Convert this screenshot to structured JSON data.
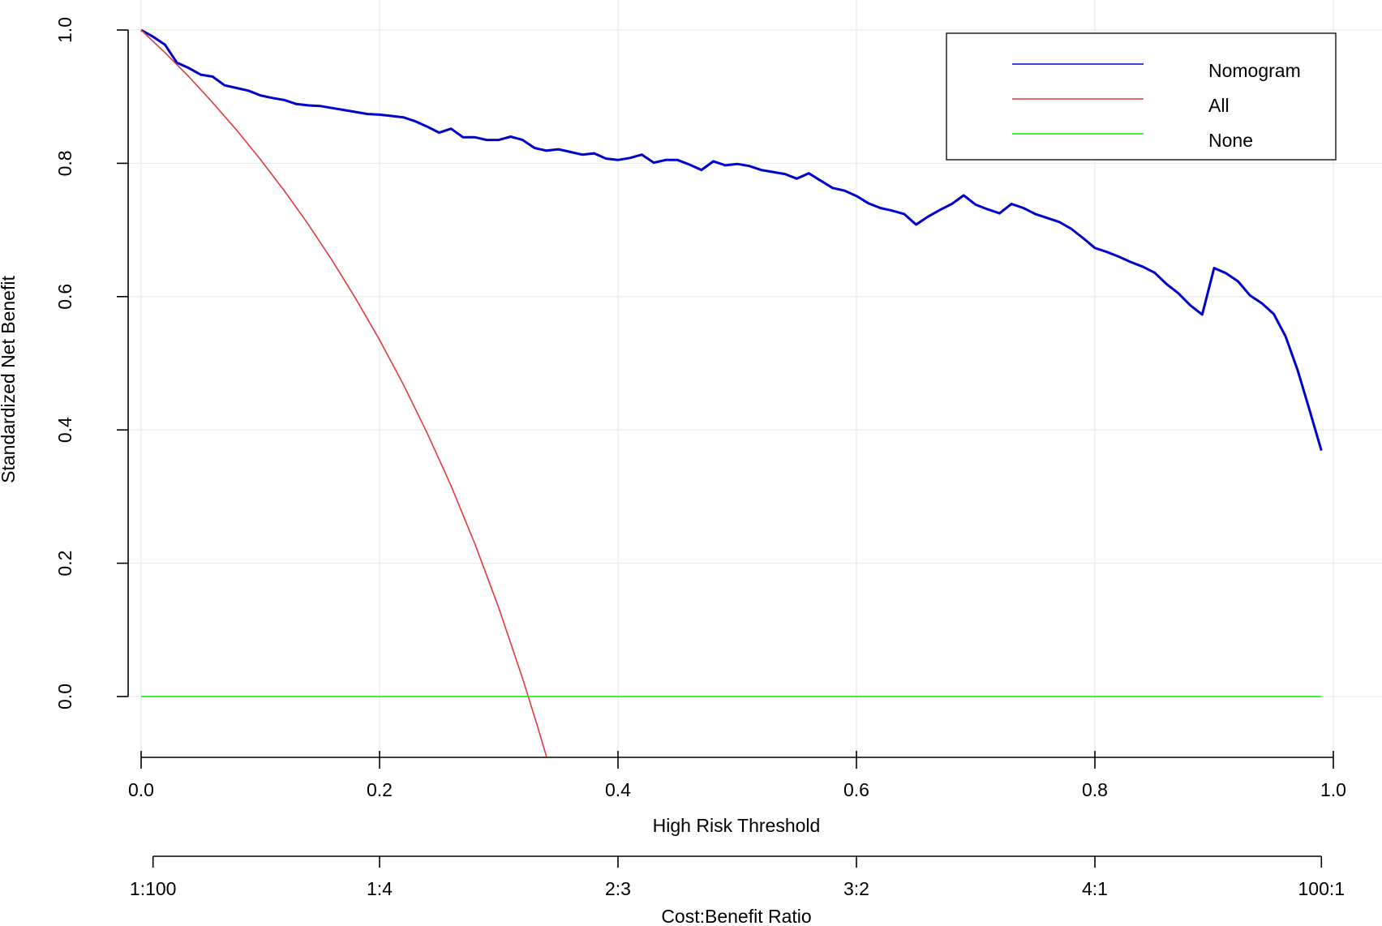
{
  "chart_data": {
    "type": "line",
    "title": "",
    "ylabel": "Standardized Net Benefit",
    "xlabel": "High Risk Threshold",
    "x2label": "Cost:Benefit Ratio",
    "xlim": [
      0,
      1
    ],
    "ylim": [
      -0.09,
      1.0
    ],
    "grid": true,
    "legend_position": "top-right",
    "y_ticks": [
      "0.0",
      "0.2",
      "0.4",
      "0.6",
      "0.8",
      "1.0"
    ],
    "x_ticks": [
      "0.0",
      "0.2",
      "0.4",
      "0.6",
      "0.8",
      "1.0"
    ],
    "x2_ticks": [
      {
        "x": 0.01,
        "label": "1:100"
      },
      {
        "x": 0.2,
        "label": "1:4"
      },
      {
        "x": 0.4,
        "label": "2:3"
      },
      {
        "x": 0.6,
        "label": "3:2"
      },
      {
        "x": 0.8,
        "label": "4:1"
      },
      {
        "x": 0.99,
        "label": "100:1"
      }
    ],
    "series": [
      {
        "name": "Nomogram",
        "color": "#0000cd",
        "points": [
          [
            0.0,
            1.0
          ],
          [
            0.01,
            0.99
          ],
          [
            0.02,
            0.978
          ],
          [
            0.03,
            0.951
          ],
          [
            0.04,
            0.943
          ],
          [
            0.05,
            0.933
          ],
          [
            0.06,
            0.93
          ],
          [
            0.07,
            0.917
          ],
          [
            0.08,
            0.913
          ],
          [
            0.09,
            0.909
          ],
          [
            0.1,
            0.902
          ],
          [
            0.11,
            0.898
          ],
          [
            0.12,
            0.895
          ],
          [
            0.13,
            0.889
          ],
          [
            0.14,
            0.887
          ],
          [
            0.15,
            0.886
          ],
          [
            0.16,
            0.883
          ],
          [
            0.17,
            0.88
          ],
          [
            0.18,
            0.877
          ],
          [
            0.19,
            0.874
          ],
          [
            0.2,
            0.873
          ],
          [
            0.21,
            0.871
          ],
          [
            0.22,
            0.869
          ],
          [
            0.23,
            0.863
          ],
          [
            0.24,
            0.855
          ],
          [
            0.25,
            0.846
          ],
          [
            0.26,
            0.852
          ],
          [
            0.27,
            0.839
          ],
          [
            0.28,
            0.839
          ],
          [
            0.29,
            0.835
          ],
          [
            0.3,
            0.835
          ],
          [
            0.31,
            0.84
          ],
          [
            0.32,
            0.835
          ],
          [
            0.33,
            0.823
          ],
          [
            0.34,
            0.819
          ],
          [
            0.35,
            0.821
          ],
          [
            0.36,
            0.817
          ],
          [
            0.37,
            0.813
          ],
          [
            0.38,
            0.815
          ],
          [
            0.39,
            0.807
          ],
          [
            0.4,
            0.805
          ],
          [
            0.41,
            0.808
          ],
          [
            0.42,
            0.813
          ],
          [
            0.43,
            0.801
          ],
          [
            0.44,
            0.805
          ],
          [
            0.45,
            0.805
          ],
          [
            0.46,
            0.798
          ],
          [
            0.47,
            0.79
          ],
          [
            0.48,
            0.803
          ],
          [
            0.49,
            0.797
          ],
          [
            0.5,
            0.799
          ],
          [
            0.51,
            0.796
          ],
          [
            0.52,
            0.79
          ],
          [
            0.53,
            0.787
          ],
          [
            0.54,
            0.784
          ],
          [
            0.55,
            0.777
          ],
          [
            0.56,
            0.785
          ],
          [
            0.57,
            0.774
          ],
          [
            0.58,
            0.763
          ],
          [
            0.59,
            0.759
          ],
          [
            0.6,
            0.751
          ],
          [
            0.61,
            0.74
          ],
          [
            0.62,
            0.733
          ],
          [
            0.63,
            0.729
          ],
          [
            0.64,
            0.724
          ],
          [
            0.65,
            0.708
          ],
          [
            0.66,
            0.72
          ],
          [
            0.67,
            0.73
          ],
          [
            0.68,
            0.739
          ],
          [
            0.69,
            0.752
          ],
          [
            0.7,
            0.738
          ],
          [
            0.71,
            0.731
          ],
          [
            0.72,
            0.725
          ],
          [
            0.73,
            0.739
          ],
          [
            0.74,
            0.733
          ],
          [
            0.75,
            0.724
          ],
          [
            0.76,
            0.718
          ],
          [
            0.77,
            0.712
          ],
          [
            0.78,
            0.702
          ],
          [
            0.79,
            0.688
          ],
          [
            0.8,
            0.673
          ],
          [
            0.81,
            0.667
          ],
          [
            0.82,
            0.66
          ],
          [
            0.83,
            0.652
          ],
          [
            0.84,
            0.645
          ],
          [
            0.85,
            0.636
          ],
          [
            0.86,
            0.619
          ],
          [
            0.87,
            0.605
          ],
          [
            0.88,
            0.587
          ],
          [
            0.89,
            0.573
          ],
          [
            0.9,
            0.643
          ],
          [
            0.91,
            0.635
          ],
          [
            0.92,
            0.623
          ],
          [
            0.93,
            0.602
          ],
          [
            0.94,
            0.59
          ],
          [
            0.95,
            0.574
          ],
          [
            0.96,
            0.54
          ],
          [
            0.97,
            0.49
          ],
          [
            0.98,
            0.43
          ],
          [
            0.99,
            0.369
          ]
        ]
      },
      {
        "name": "All",
        "color": "#e0393e",
        "points": [
          [
            0.0,
            1.0
          ],
          [
            0.02,
            0.966
          ],
          [
            0.04,
            0.93
          ],
          [
            0.06,
            0.891
          ],
          [
            0.08,
            0.85
          ],
          [
            0.1,
            0.806
          ],
          [
            0.12,
            0.759
          ],
          [
            0.14,
            0.709
          ],
          [
            0.16,
            0.655
          ],
          [
            0.18,
            0.597
          ],
          [
            0.2,
            0.535
          ],
          [
            0.22,
            0.468
          ],
          [
            0.24,
            0.395
          ],
          [
            0.26,
            0.316
          ],
          [
            0.28,
            0.229
          ],
          [
            0.3,
            0.133
          ],
          [
            0.32,
            0.027
          ],
          [
            0.3325,
            -0.045
          ],
          [
            0.34,
            -0.09
          ]
        ]
      },
      {
        "name": "None",
        "color": "#00ee00",
        "points": [
          [
            0.0,
            0.0
          ],
          [
            0.99,
            0.0
          ]
        ]
      }
    ]
  }
}
